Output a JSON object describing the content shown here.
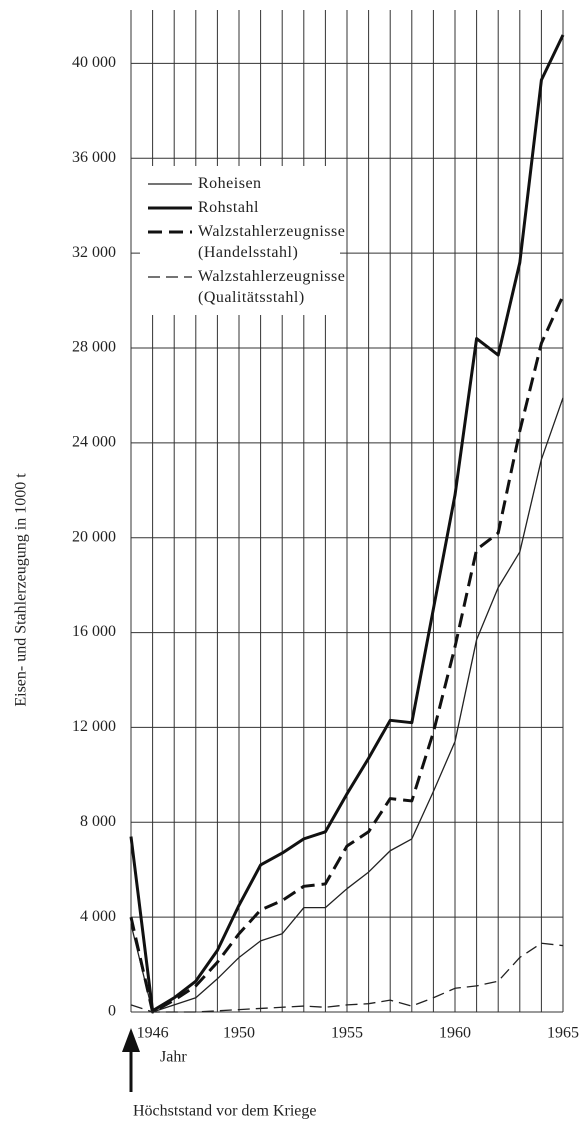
{
  "chart_data": {
    "type": "line",
    "y_label": "Eisen- und Stahlerzeugung in 1000 t",
    "x_label": "Jahr",
    "annotation": "Höchststand vor dem Kriege",
    "categories": [
      null,
      "1946",
      null,
      null,
      null,
      "1950",
      null,
      null,
      null,
      null,
      "1955",
      null,
      null,
      null,
      null,
      "1960",
      null,
      null,
      null,
      null,
      "1965"
    ],
    "ylim": [
      0,
      42000
    ],
    "yticks": [
      0,
      {
        "value": 4000,
        "label": "4 000"
      },
      {
        "value": 8000,
        "label": "8 000"
      },
      {
        "value": 12000,
        "label": "12 000"
      },
      {
        "value": 16000,
        "label": "16 000"
      },
      {
        "value": 20000,
        "label": "20 000"
      },
      {
        "value": 24000,
        "label": "24 000"
      },
      {
        "value": 28000,
        "label": "28 000"
      },
      {
        "value": 32000,
        "label": "32 000"
      },
      {
        "value": 36000,
        "label": "36 000"
      },
      {
        "value": 40000,
        "label": "40 000"
      }
    ],
    "grid": true,
    "legend": "upper left",
    "series": [
      {
        "name": "Roheisen",
        "color": "#222222",
        "line_width": "thin",
        "line_style": "solid",
        "values": [
          3700,
          0,
          300,
          600,
          1400,
          2300,
          3000,
          3300,
          4400,
          4400,
          5200,
          5900,
          6800,
          7300,
          9300,
          11400,
          15700,
          17900,
          19400,
          23300,
          25900
        ]
      },
      {
        "name": "Rohstahl",
        "color": "#111111",
        "line_width": "thick",
        "line_style": "solid",
        "values": [
          7400,
          50,
          600,
          1300,
          2600,
          4500,
          6200,
          6700,
          7300,
          7600,
          9200,
          10700,
          12300,
          12200,
          17000,
          21800,
          28400,
          27700,
          31600,
          39300,
          41200
        ]
      },
      {
        "name": "Walzstahlerzeugnisse\n(Handelsstahl)",
        "color": "#111111",
        "line_width": "thick",
        "line_style": "dashed",
        "values": [
          4000,
          0,
          500,
          1100,
          2100,
          3300,
          4300,
          4700,
          5300,
          5400,
          7000,
          7600,
          9000,
          8900,
          11800,
          15400,
          19500,
          20200,
          24500,
          28200,
          30200
        ]
      },
      {
        "name": "Walzstahlerzeugnisse\n(Qualitätsstahl)",
        "color": "#222222",
        "line_width": "thin",
        "line_style": "dashed",
        "values": [
          300,
          0,
          0,
          0,
          50,
          100,
          150,
          200,
          250,
          200,
          300,
          350,
          500,
          250,
          600,
          1000,
          1100,
          1300,
          2300,
          2900,
          2800
        ]
      }
    ]
  }
}
